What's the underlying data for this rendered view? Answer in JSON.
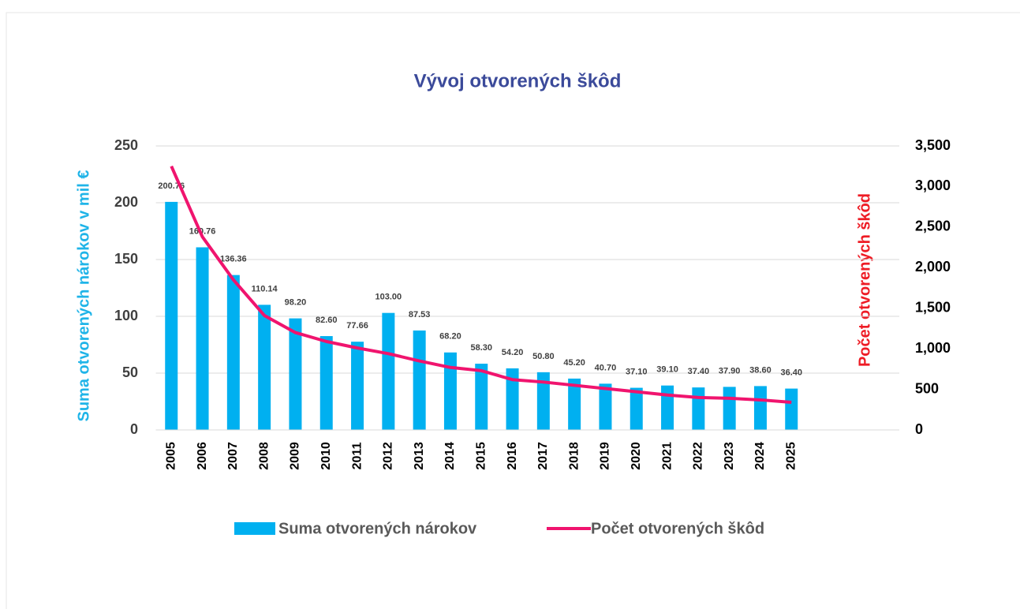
{
  "chart_data": {
    "type": "bar_line",
    "title": "Vývoj otvorených škôd",
    "y_label": "Suma otvorených nárokov v mil €",
    "y2_label": "Počet otvorených škôd",
    "categories": [
      "2005",
      "2006",
      "2007",
      "2008",
      "2009",
      "2010",
      "2011",
      "2012",
      "2013",
      "2014",
      "2015",
      "2016",
      "2017",
      "2018",
      "2019",
      "2020",
      "2021",
      "2022",
      "2023",
      "2024",
      "2025"
    ],
    "series": [
      {
        "name": "Suma otvorených nárokov",
        "type": "bar",
        "color": "#00b0f0",
        "values": [
          200.76,
          160.76,
          136.36,
          110.14,
          98.2,
          82.6,
          77.66,
          103,
          87.53,
          68.2,
          58.3,
          54.2,
          50.8,
          45.2,
          40.7,
          37.1,
          39.1,
          37.4,
          37.9,
          38.6,
          36.4
        ],
        "value_labels": [
          "200.76",
          "160.76",
          "136.36",
          "110.14",
          "98.20",
          "82.60",
          "77.66",
          "103.00",
          "87.53",
          "68.20",
          "58.30",
          "54.20",
          "50.80",
          "45.20",
          "40.70",
          "37.10",
          "39.10",
          "37.40",
          "37.90",
          "38.60",
          "36.40"
        ]
      },
      {
        "name": "Počet otvorených škôd",
        "type": "line",
        "axis": "y2",
        "color": "#f0146e",
        "values": [
          3250,
          2380,
          1850,
          1410,
          1200,
          1090,
          1010,
          940,
          850,
          770,
          730,
          620,
          590,
          550,
          510,
          470,
          430,
          400,
          390,
          370,
          340
        ]
      }
    ],
    "ylim": [
      0,
      250
    ],
    "yticks": [
      0,
      50,
      100,
      150,
      200,
      250
    ],
    "y2lim": [
      0,
      3500
    ],
    "y2ticks": [
      0,
      500,
      {
        "value": 1000,
        "label": "1,000"
      },
      {
        "value": 1500,
        "label": "1,500"
      },
      {
        "value": 2000,
        "label": "2,000"
      },
      {
        "value": 2500,
        "label": "2,500"
      },
      {
        "value": 3000,
        "label": "3,000"
      },
      {
        "value": 3500,
        "label": "3,500"
      }
    ],
    "grid": true,
    "legend": "bottom"
  }
}
